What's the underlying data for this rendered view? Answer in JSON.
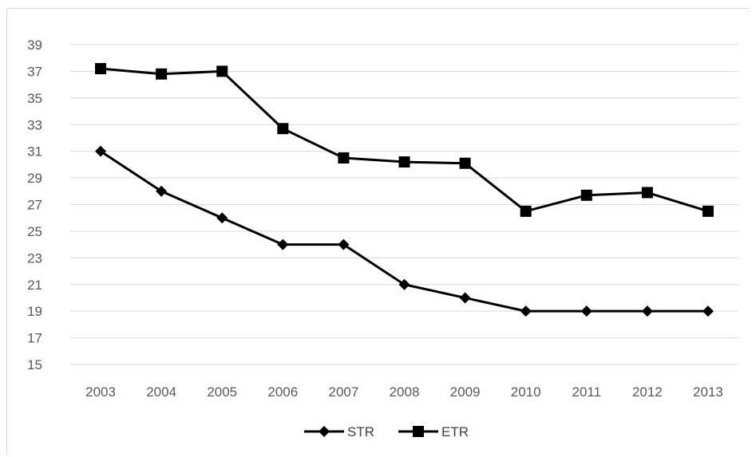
{
  "figure": {
    "caption": ""
  },
  "chart_data": {
    "type": "line",
    "title": "",
    "xlabel": "",
    "ylabel": "",
    "categories": [
      "2003",
      "2004",
      "2005",
      "2006",
      "2007",
      "2008",
      "2009",
      "2010",
      "2011",
      "2012",
      "2013"
    ],
    "ylim": [
      15,
      39
    ],
    "yticks": [
      15,
      17,
      19,
      21,
      23,
      25,
      27,
      29,
      31,
      33,
      35,
      37,
      39
    ],
    "grid": true,
    "legend_position": "bottom",
    "series": [
      {
        "name": "STR",
        "marker": "diamond",
        "color": "#000000",
        "values": [
          31,
          28,
          26,
          24,
          24,
          21,
          20,
          19,
          19,
          19,
          19
        ]
      },
      {
        "name": "ETR",
        "marker": "square",
        "color": "#000000",
        "values": [
          37.2,
          36.8,
          37,
          32.7,
          30.5,
          30.2,
          30.1,
          26.5,
          27.7,
          27.9,
          26.5
        ]
      }
    ]
  }
}
